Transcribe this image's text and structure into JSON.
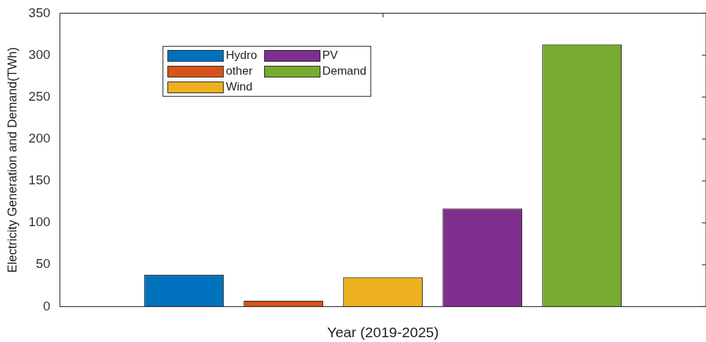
{
  "chart_data": {
    "type": "bar",
    "xlabel": "Year (2019-2025)",
    "ylabel": "Electricity Generation and Demand(TWh)",
    "categories": [
      null
    ],
    "series": [
      {
        "name": "Hydro",
        "color": "#0072bd",
        "values": [
          38
        ]
      },
      {
        "name": "other",
        "color": "#d95319",
        "values": [
          7
        ]
      },
      {
        "name": "Wind",
        "color": "#edb120",
        "values": [
          35
        ]
      },
      {
        "name": "PV",
        "color": "#7e2f8e",
        "values": [
          117
        ]
      },
      {
        "name": "Demand",
        "color": "#77ac30",
        "values": [
          313
        ]
      }
    ],
    "ylim": [
      0,
      350
    ],
    "yticks": [
      0,
      50,
      100,
      150,
      200,
      250,
      300,
      350
    ],
    "grid": false,
    "legend": "top left"
  }
}
